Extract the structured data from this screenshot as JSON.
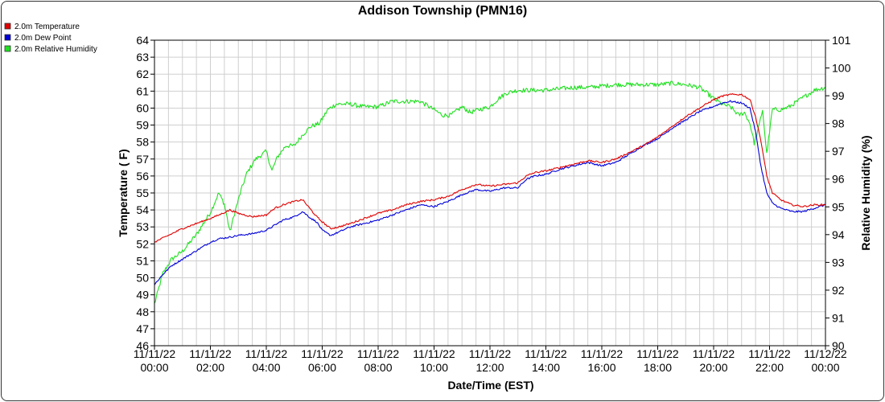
{
  "chart_data": {
    "type": "line",
    "title": "Addison Township (PMN16)",
    "xlabel": "Date/Time (EST)",
    "ylabel": "Temperature ( F)",
    "y2label": "Relative Humidity (%)",
    "xlim": [
      0,
      24
    ],
    "ylim": [
      46,
      64
    ],
    "y2lim": [
      90,
      101
    ],
    "grid": true,
    "legend_position": "top-left",
    "x_ticks": [
      {
        "value": 0,
        "date": "11/11/22",
        "time": "00:00"
      },
      {
        "value": 2,
        "date": "11/11/22",
        "time": "02:00"
      },
      {
        "value": 4,
        "date": "11/11/22",
        "time": "04:00"
      },
      {
        "value": 6,
        "date": "11/11/22",
        "time": "06:00"
      },
      {
        "value": 8,
        "date": "11/11/22",
        "time": "08:00"
      },
      {
        "value": 10,
        "date": "11/11/22",
        "time": "10:00"
      },
      {
        "value": 12,
        "date": "11/11/22",
        "time": "12:00"
      },
      {
        "value": 14,
        "date": "11/11/22",
        "time": "14:00"
      },
      {
        "value": 16,
        "date": "11/11/22",
        "time": "16:00"
      },
      {
        "value": 18,
        "date": "11/11/22",
        "time": "18:00"
      },
      {
        "value": 20,
        "date": "11/11/22",
        "time": "20:00"
      },
      {
        "value": 22,
        "date": "11/11/22",
        "time": "22:00"
      },
      {
        "value": 24,
        "date": "11/12/22",
        "time": "00:00"
      }
    ],
    "y_ticks": [
      46,
      47,
      48,
      49,
      50,
      51,
      52,
      53,
      54,
      55,
      56,
      57,
      58,
      59,
      60,
      61,
      62,
      63,
      64
    ],
    "y2_ticks": [
      90,
      91,
      92,
      93,
      94,
      95,
      96,
      97,
      98,
      99,
      100,
      101
    ],
    "series": [
      {
        "name": "2.0m Temperature",
        "color": "#e00000",
        "axis": "left",
        "x": [
          0,
          0.5,
          1,
          1.5,
          2,
          2.3,
          2.7,
          3,
          3.5,
          4,
          4.3,
          4.6,
          5,
          5.3,
          5.6,
          5.8,
          6,
          6.3,
          6.6,
          7,
          7.5,
          8,
          8.5,
          9,
          9.5,
          10,
          10.5,
          11,
          11.5,
          12,
          12.5,
          13,
          13.3,
          13.6,
          14,
          14.5,
          15,
          15.5,
          16,
          16.5,
          17,
          17.5,
          18,
          18.5,
          19,
          19.5,
          20,
          20.3,
          20.6,
          21,
          21.3,
          21.5,
          21.7,
          21.9,
          22.1,
          22.4,
          22.8,
          23.2,
          23.6,
          24
        ],
        "y": [
          52.1,
          52.5,
          52.9,
          53.2,
          53.5,
          53.7,
          54.0,
          53.8,
          53.6,
          53.7,
          54.1,
          54.3,
          54.5,
          54.6,
          54.0,
          53.6,
          53.3,
          52.9,
          53.0,
          53.2,
          53.5,
          53.8,
          54.0,
          54.3,
          54.5,
          54.6,
          54.8,
          55.2,
          55.5,
          55.4,
          55.5,
          55.6,
          56.0,
          56.2,
          56.3,
          56.5,
          56.7,
          56.9,
          56.8,
          57.0,
          57.4,
          57.8,
          58.3,
          58.9,
          59.5,
          60.0,
          60.5,
          60.7,
          60.8,
          60.8,
          60.5,
          59.5,
          58.0,
          56.0,
          55.0,
          54.6,
          54.3,
          54.2,
          54.3,
          54.3
        ]
      },
      {
        "name": "2.0m Dew Point",
        "color": "#0000d8",
        "axis": "left",
        "x": [
          0,
          0.3,
          0.6,
          1,
          1.5,
          2,
          2.3,
          2.7,
          3,
          3.5,
          4,
          4.3,
          4.6,
          5,
          5.3,
          5.6,
          5.8,
          6,
          6.3,
          6.6,
          7,
          7.5,
          8,
          8.5,
          9,
          9.5,
          10,
          10.5,
          11,
          11.5,
          12,
          12.5,
          13,
          13.3,
          13.6,
          14,
          14.5,
          15,
          15.5,
          16,
          16.5,
          17,
          17.5,
          18,
          18.5,
          19,
          19.5,
          20,
          20.3,
          20.6,
          21,
          21.3,
          21.5,
          21.7,
          21.9,
          22.1,
          22.4,
          22.8,
          23.2,
          23.6,
          24
        ],
        "y": [
          49.6,
          50.2,
          50.7,
          51.1,
          51.6,
          52.1,
          52.3,
          52.4,
          52.5,
          52.6,
          52.8,
          53.1,
          53.4,
          53.6,
          53.9,
          53.5,
          53.3,
          52.8,
          52.5,
          52.7,
          53.0,
          53.2,
          53.4,
          53.7,
          54.0,
          54.3,
          54.2,
          54.5,
          54.9,
          55.2,
          55.1,
          55.3,
          55.3,
          55.8,
          56.0,
          56.1,
          56.4,
          56.6,
          56.8,
          56.6,
          56.8,
          57.3,
          57.8,
          58.2,
          58.8,
          59.3,
          59.8,
          60.1,
          60.3,
          60.4,
          60.3,
          60.0,
          58.6,
          56.5,
          55.0,
          54.4,
          54.1,
          53.9,
          53.9,
          54.1,
          54.3
        ]
      },
      {
        "name": "2.0m Relative Humidity",
        "color": "#20e020",
        "axis": "right",
        "x": [
          0,
          0.3,
          0.6,
          1,
          1.5,
          2,
          2.3,
          2.5,
          2.7,
          2.9,
          3.1,
          3.3,
          3.6,
          4,
          4.2,
          4.4,
          4.7,
          5,
          5.3,
          5.6,
          5.9,
          6.2,
          6.5,
          7,
          7.5,
          8,
          8.5,
          9,
          9.5,
          10,
          10.3,
          10.6,
          11,
          11.3,
          11.6,
          12,
          12.3,
          12.6,
          13,
          13.5,
          14,
          14.5,
          15,
          15.5,
          16,
          16.5,
          17,
          17.5,
          18,
          18.5,
          19,
          19.5,
          20,
          20.3,
          20.6,
          20.9,
          21.1,
          21.3,
          21.45,
          21.6,
          21.75,
          21.9,
          22.1,
          22.4,
          22.7,
          23,
          23.3,
          23.6,
          24
        ],
        "y": [
          91.5,
          92.6,
          93.1,
          93.4,
          94.0,
          94.8,
          95.5,
          95.1,
          94.1,
          94.9,
          95.6,
          96.2,
          96.7,
          97.0,
          96.3,
          96.8,
          97.2,
          97.2,
          97.6,
          97.9,
          98.0,
          98.5,
          98.7,
          98.7,
          98.6,
          98.6,
          98.8,
          98.8,
          98.8,
          98.5,
          98.3,
          98.3,
          98.6,
          98.4,
          98.5,
          98.6,
          98.9,
          99.1,
          99.2,
          99.2,
          99.2,
          99.25,
          99.3,
          99.3,
          99.35,
          99.4,
          99.4,
          99.4,
          99.4,
          99.45,
          99.4,
          99.3,
          98.9,
          98.7,
          98.6,
          98.3,
          98.4,
          98.0,
          97.3,
          97.8,
          98.5,
          96.9,
          98.5,
          98.5,
          98.6,
          98.8,
          99.0,
          99.2,
          99.3
        ]
      }
    ]
  }
}
